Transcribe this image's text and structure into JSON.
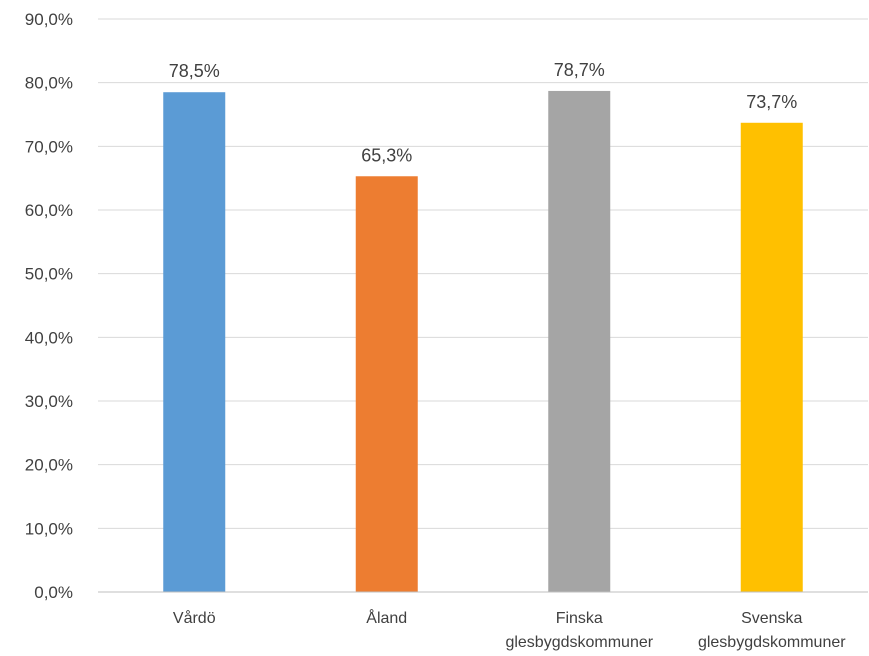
{
  "chart_data": {
    "type": "bar",
    "title": "",
    "xlabel": "",
    "ylabel": "",
    "ylim": [
      0,
      90
    ],
    "y_ticks": [
      0,
      10,
      20,
      30,
      40,
      50,
      60,
      70,
      80,
      90
    ],
    "y_tick_labels": [
      "0,0%",
      "10,0%",
      "20,0%",
      "30,0%",
      "40,0%",
      "50,0%",
      "60,0%",
      "70,0%",
      "80,0%",
      "90,0%"
    ],
    "grid": true,
    "legend": "none",
    "categories": [
      [
        "Vårdö"
      ],
      [
        "Åland"
      ],
      [
        "Finska",
        "glesbygdskommuner"
      ],
      [
        "Svenska",
        "glesbygdskommuner"
      ]
    ],
    "values": [
      78.5,
      65.3,
      78.7,
      73.7
    ],
    "value_labels": [
      "78,5%",
      "65,3%",
      "78,7%",
      "73,7%"
    ],
    "colors": [
      "#5b9bd5",
      "#ed7d31",
      "#a5a5a5",
      "#ffc000"
    ]
  }
}
